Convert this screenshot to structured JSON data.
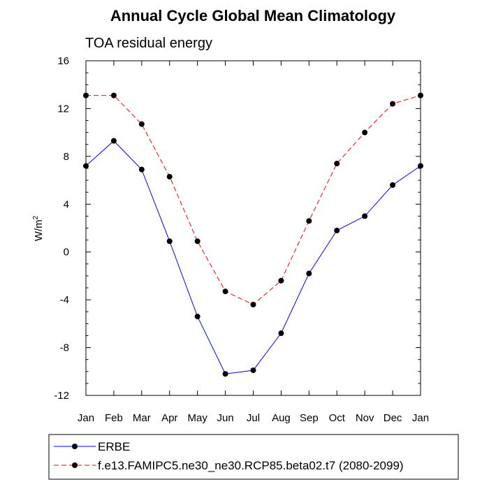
{
  "chart_data": {
    "type": "line",
    "title": "Annual Cycle Global Mean Climatology",
    "subtitle": "TOA residual energy",
    "xlabel": "",
    "ylabel": "W/m",
    "ylabel_superscript": "2",
    "categories": [
      "Jan",
      "Feb",
      "Mar",
      "Apr",
      "May",
      "Jun",
      "Jul",
      "Aug",
      "Sep",
      "Oct",
      "Nov",
      "Dec",
      "Jan"
    ],
    "ylim": [
      -12,
      16
    ],
    "yticks": [
      "-12",
      "-8",
      "-4",
      "0",
      "4",
      "8",
      "12",
      "16"
    ],
    "grid": false,
    "legend_position": "bottom",
    "series": [
      {
        "name": "ERBE",
        "color": "#0000ff",
        "line_style": "solid",
        "marker": "filled-circle",
        "values": [
          7.2,
          9.3,
          6.9,
          0.9,
          -5.4,
          -10.2,
          -9.9,
          -6.8,
          -1.8,
          1.8,
          3.0,
          5.6,
          7.2
        ]
      },
      {
        "name": "f.e13.FAMIPC5.ne30_ne30.RCP85.beta02.t7 (2080-2099)",
        "color": "#ff0000",
        "line_style": "dashed",
        "marker": "filled-circle",
        "values": [
          13.1,
          13.1,
          10.7,
          6.3,
          0.9,
          -3.3,
          -4.4,
          -2.4,
          2.6,
          7.4,
          10.0,
          12.4,
          13.1
        ]
      }
    ]
  }
}
